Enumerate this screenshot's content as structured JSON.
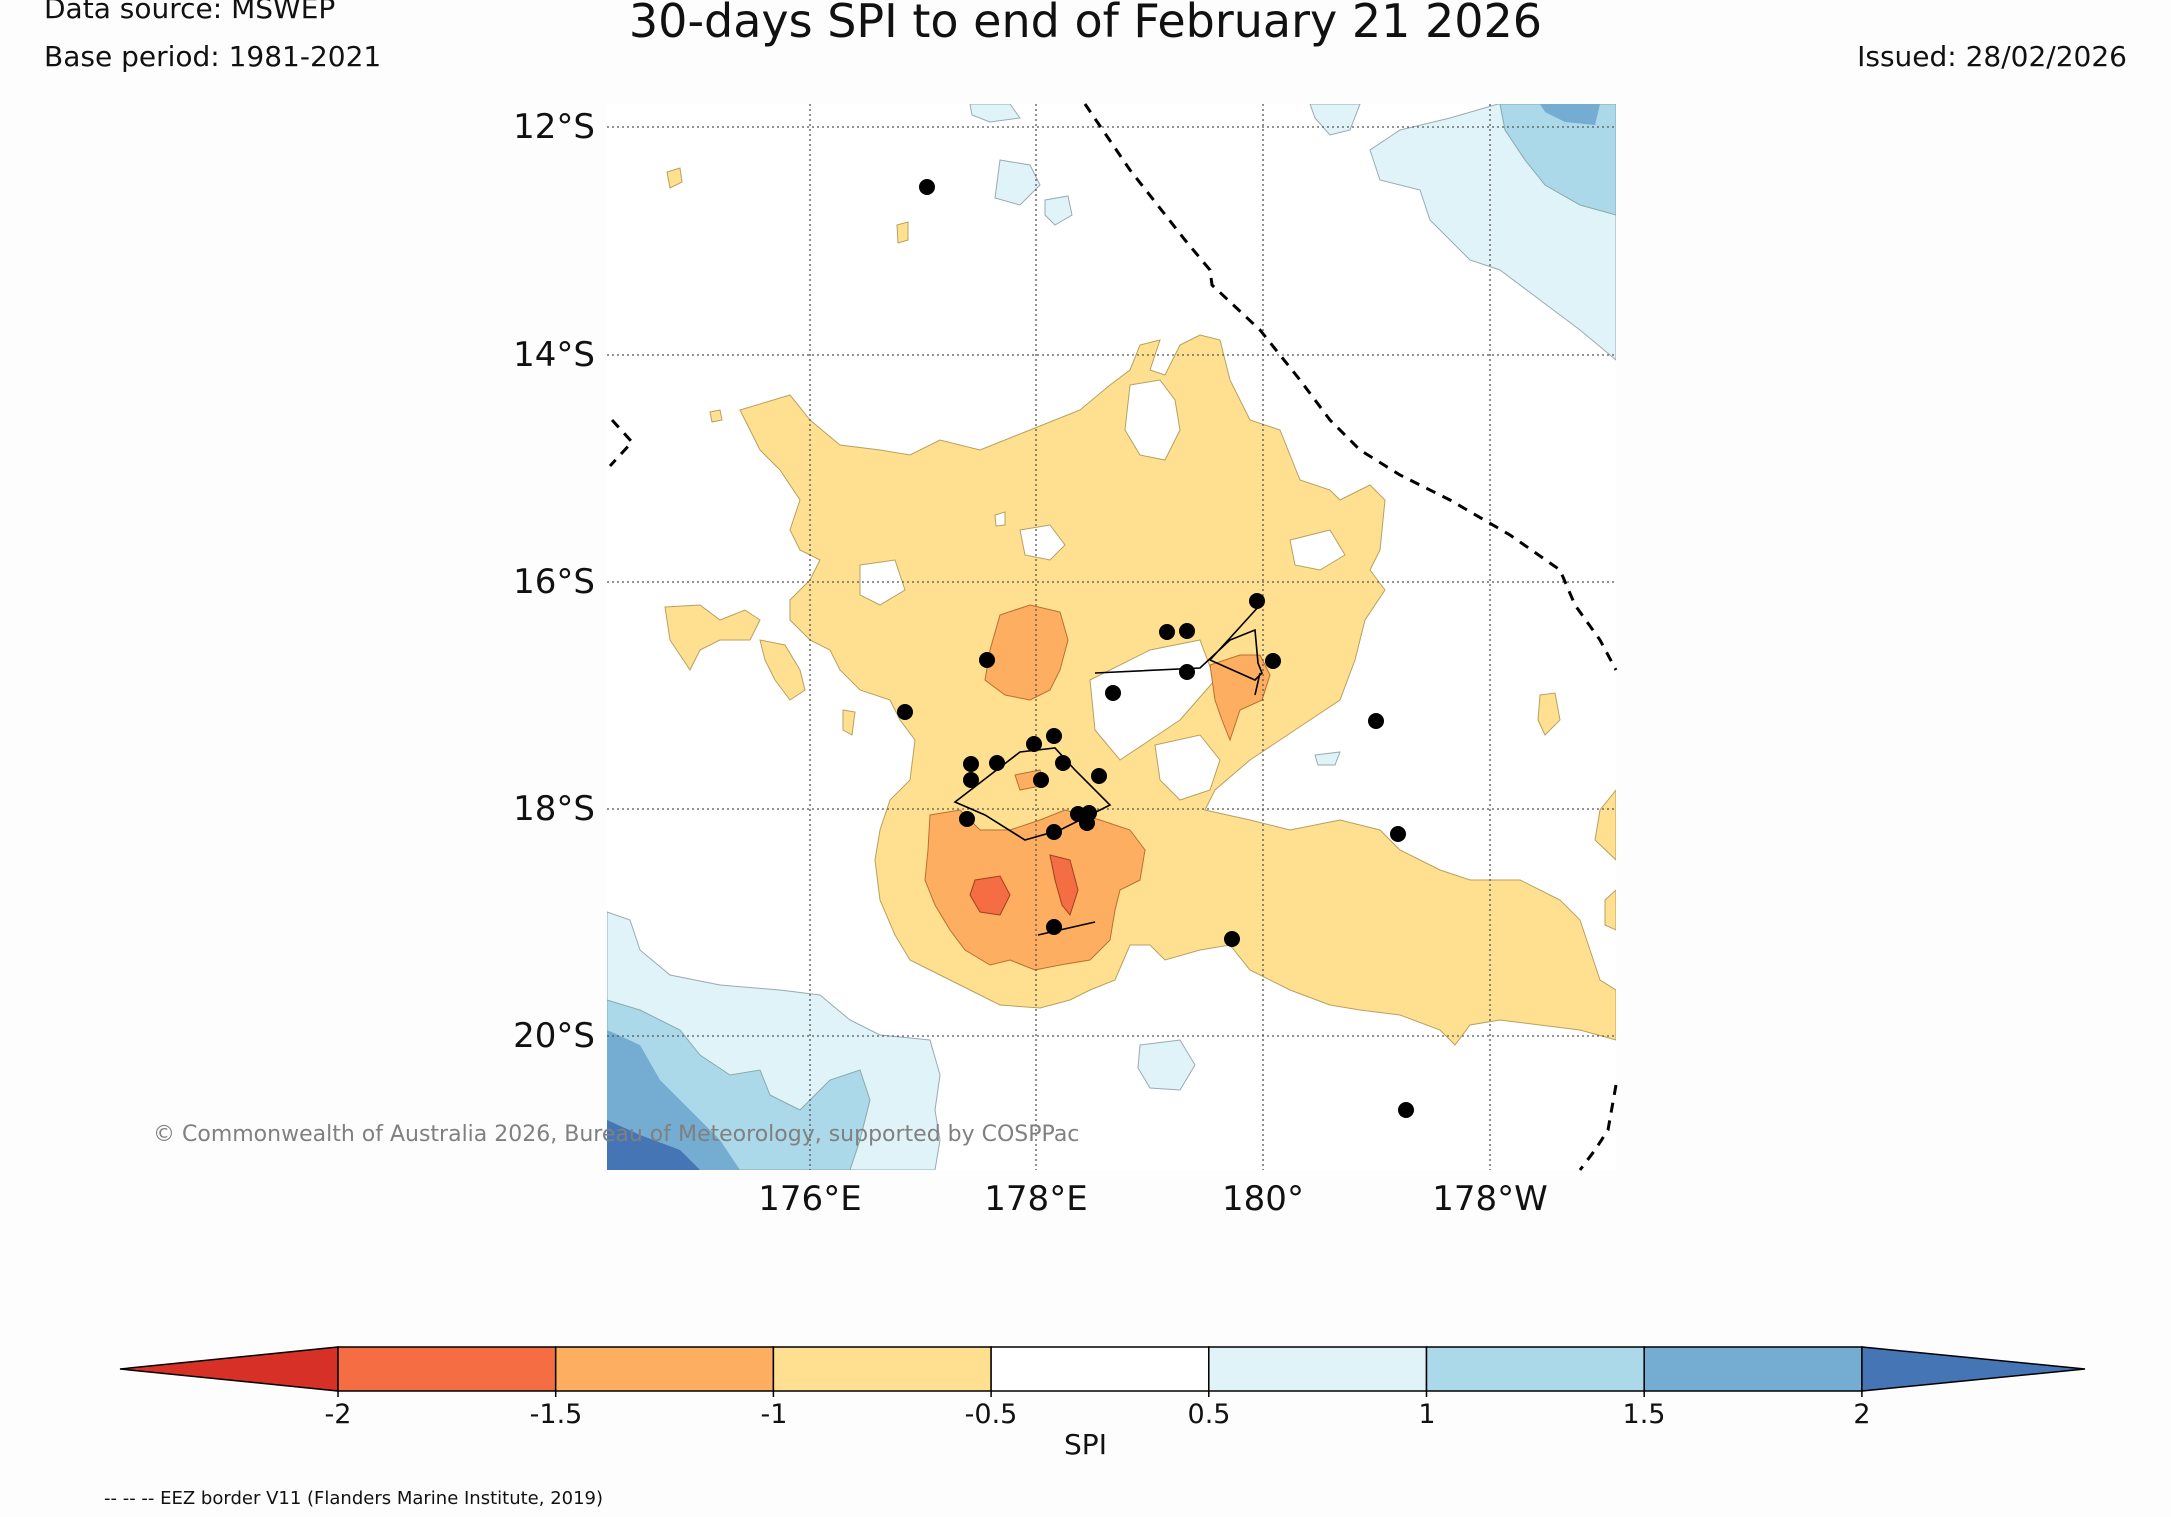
{
  "header": {
    "data_source": "Data source: MSWEP",
    "base_period": "Base period: 1981-2021",
    "title": "30-days SPI to end of February 21 2026",
    "issued": "Issued: 28/02/2026"
  },
  "map": {
    "lat_labels": [
      "12°S",
      "14°S",
      "16°S",
      "18°S",
      "20°S"
    ],
    "lon_labels": [
      "176°E",
      "178°E",
      "180°",
      "178°W"
    ],
    "copyright": "© Commonwealth of Australia 2026, Bureau of Meteorology, supported by COSPPac",
    "colors": {
      "dry_extreme": "#d73027",
      "dry_very": "#f46d43",
      "dry_moderate": "#fdae61",
      "dry_mild": "#fee090",
      "normal": "#ffffff",
      "wet_mild": "#e0f3f8",
      "wet_moderate": "#abd9e9",
      "wet_very": "#74add1",
      "wet_extreme": "#4575b4"
    }
  },
  "colorbar": {
    "tick_labels": [
      "-2",
      "-1.5",
      "-1",
      "-0.5",
      "0.5",
      "1",
      "1.5",
      "2"
    ],
    "label": "SPI",
    "colors": [
      "#d73027",
      "#f46d43",
      "#fdae61",
      "#fee090",
      "#ffffff",
      "#e0f3f8",
      "#abd9e9",
      "#74add1",
      "#4575b4"
    ]
  },
  "footer": {
    "eez_note": "-- -- -- EEZ border V11 (Flanders Marine Institute, 2019)"
  }
}
